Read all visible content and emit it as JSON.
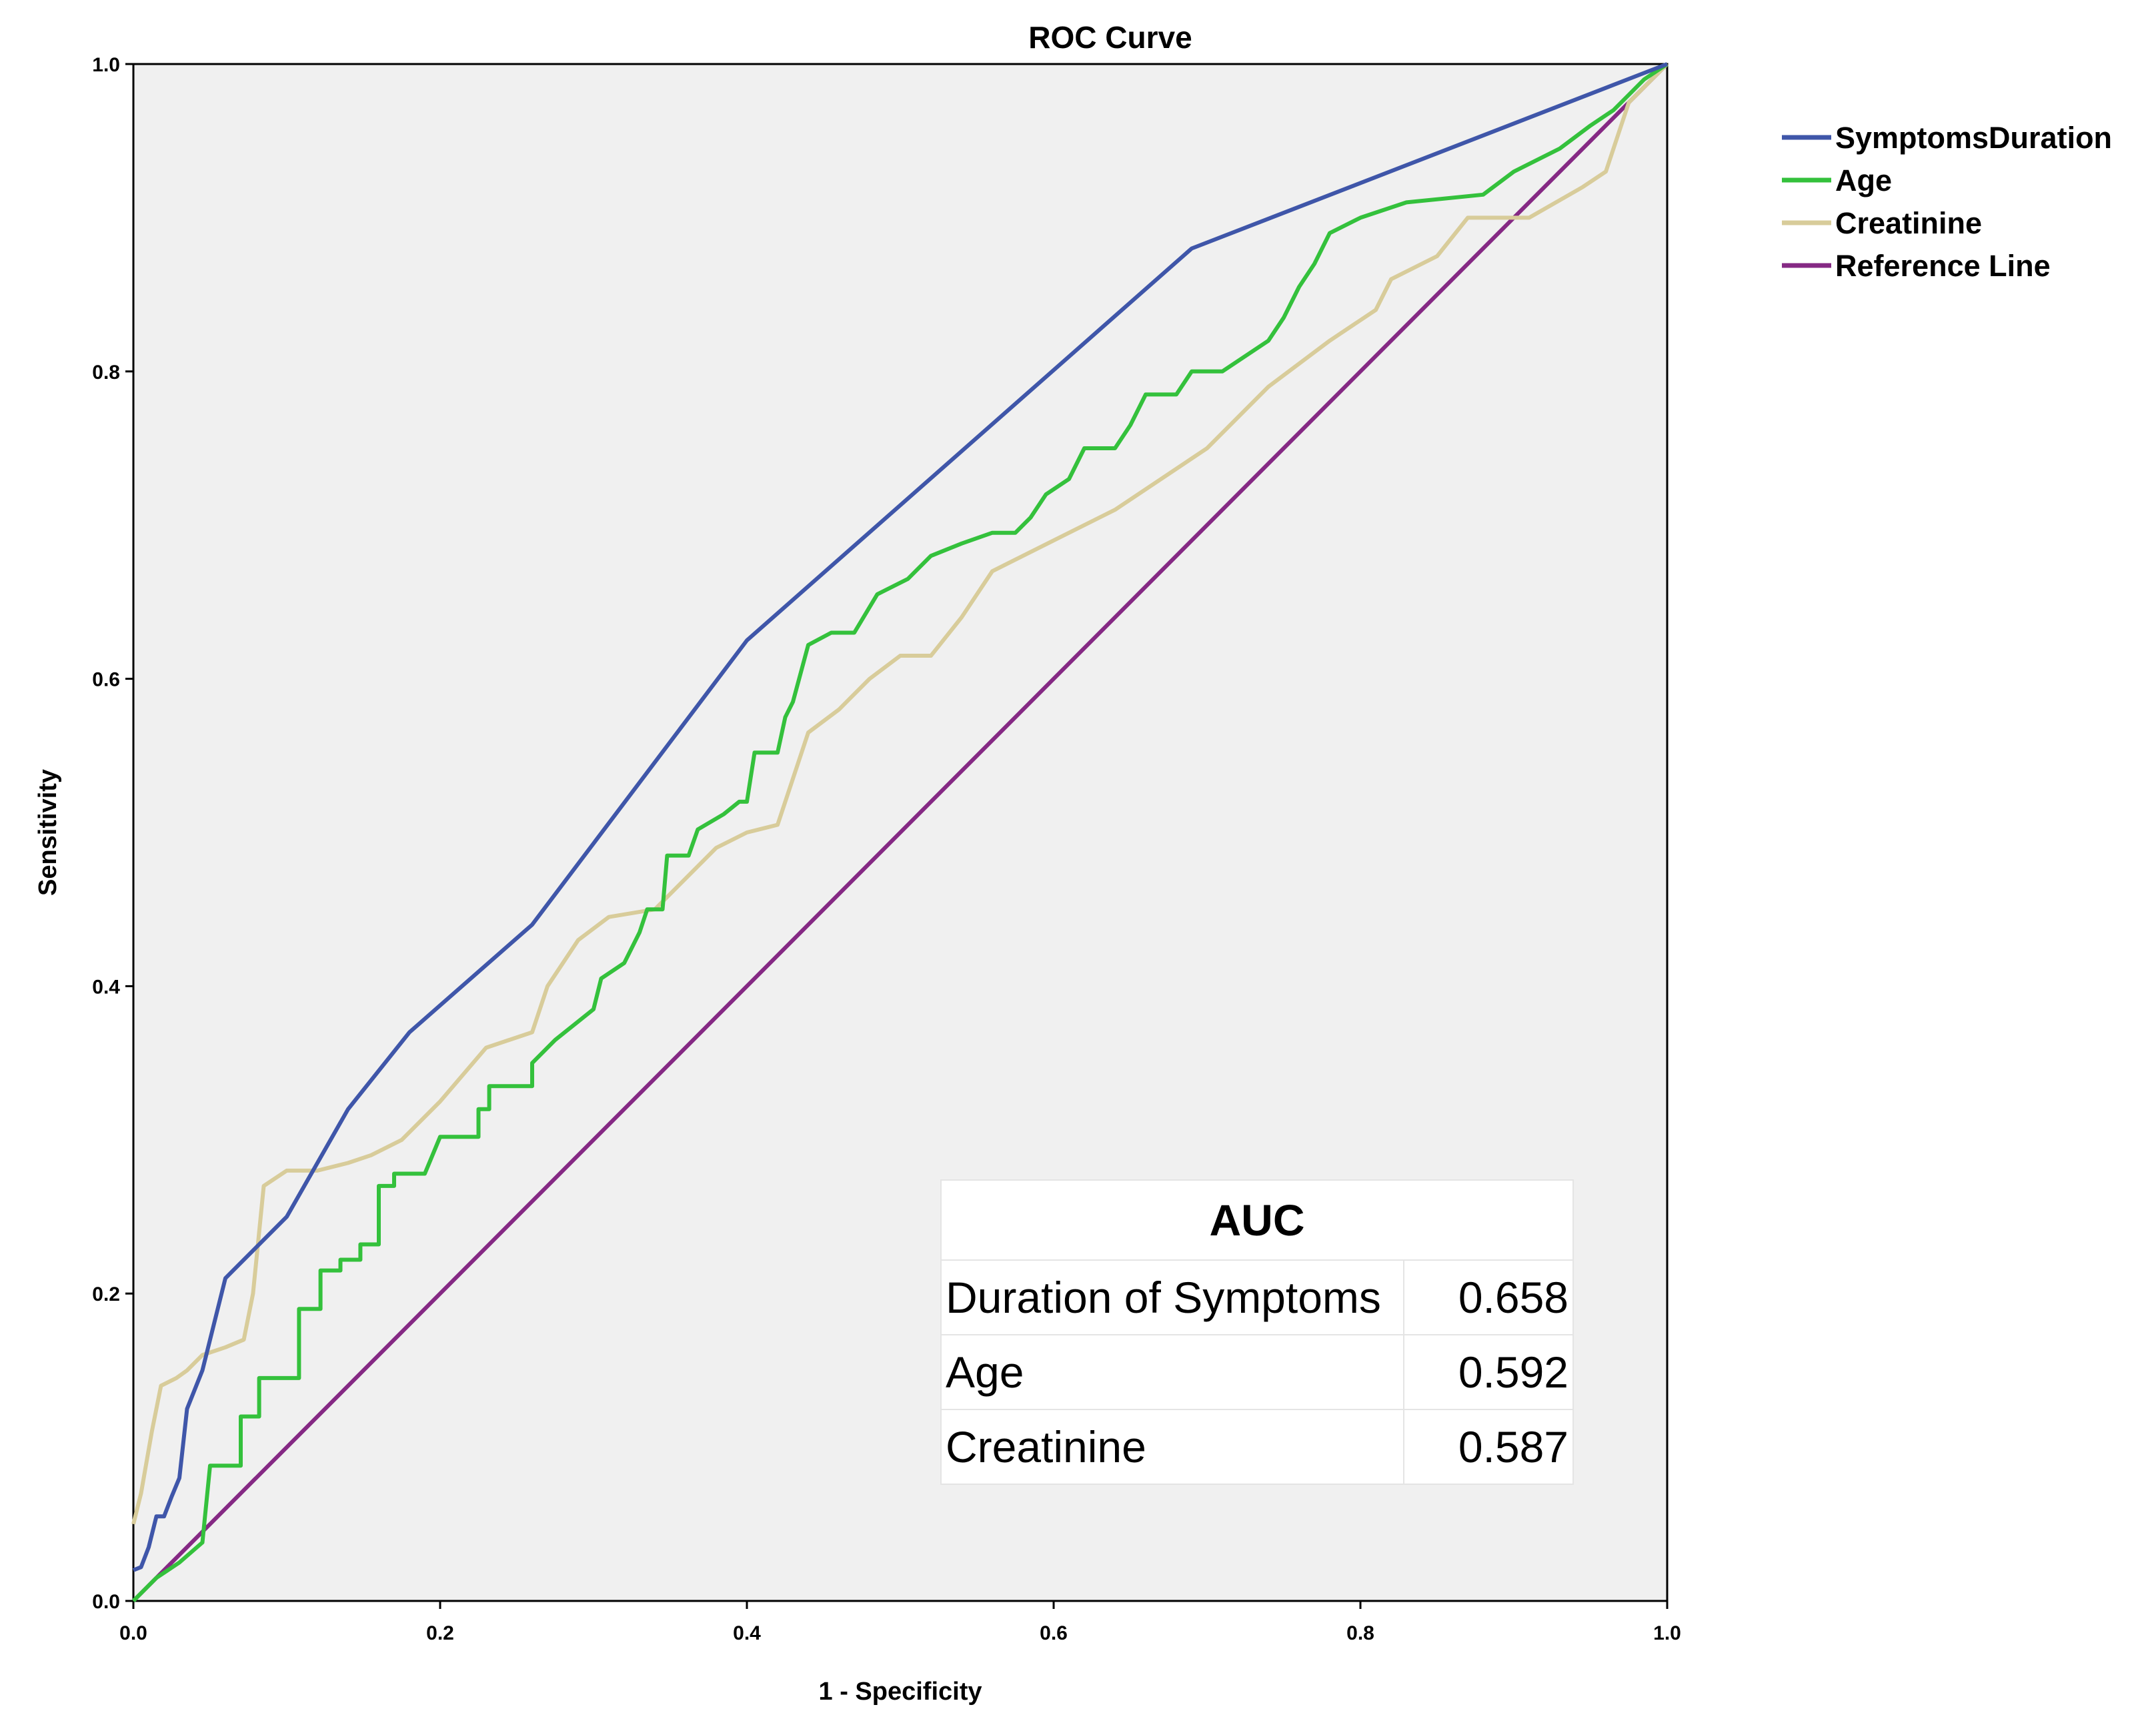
{
  "chart_data": {
    "type": "line",
    "title": "ROC Curve",
    "xlabel": "1 - Specificity",
    "ylabel": "Sensitivity",
    "xlim": [
      0,
      1
    ],
    "ylim": [
      0,
      1
    ],
    "x_ticks": [
      "0.0",
      "0.2",
      "0.4",
      "0.6",
      "0.8",
      "1.0"
    ],
    "y_ticks": [
      "0.0",
      "0.2",
      "0.4",
      "0.6",
      "0.8",
      "1.0"
    ],
    "legend_position": "right-top",
    "series": [
      {
        "name": "SymptomsDuration",
        "color": "#3f56a9",
        "points": [
          [
            0,
            0.02
          ],
          [
            0.005,
            0.022
          ],
          [
            0.01,
            0.035
          ],
          [
            0.015,
            0.055
          ],
          [
            0.02,
            0.055
          ],
          [
            0.025,
            0.068
          ],
          [
            0.03,
            0.08
          ],
          [
            0.035,
            0.125
          ],
          [
            0.045,
            0.15
          ],
          [
            0.055,
            0.19
          ],
          [
            0.06,
            0.21
          ],
          [
            0.1,
            0.25
          ],
          [
            0.14,
            0.32
          ],
          [
            0.18,
            0.37
          ],
          [
            0.26,
            0.44
          ],
          [
            0.4,
            0.625
          ],
          [
            0.69,
            0.88
          ],
          [
            1,
            1
          ]
        ]
      },
      {
        "name": "Age",
        "color": "#34c13c",
        "points": [
          [
            0,
            0
          ],
          [
            0.015,
            0.015
          ],
          [
            0.03,
            0.025
          ],
          [
            0.045,
            0.038
          ],
          [
            0.05,
            0.088
          ],
          [
            0.07,
            0.088
          ],
          [
            0.07,
            0.12
          ],
          [
            0.082,
            0.12
          ],
          [
            0.082,
            0.145
          ],
          [
            0.108,
            0.145
          ],
          [
            0.108,
            0.19
          ],
          [
            0.122,
            0.19
          ],
          [
            0.122,
            0.215
          ],
          [
            0.135,
            0.215
          ],
          [
            0.135,
            0.222
          ],
          [
            0.148,
            0.222
          ],
          [
            0.148,
            0.232
          ],
          [
            0.16,
            0.232
          ],
          [
            0.16,
            0.27
          ],
          [
            0.17,
            0.27
          ],
          [
            0.17,
            0.278
          ],
          [
            0.19,
            0.278
          ],
          [
            0.2,
            0.302
          ],
          [
            0.225,
            0.302
          ],
          [
            0.225,
            0.32
          ],
          [
            0.232,
            0.32
          ],
          [
            0.232,
            0.335
          ],
          [
            0.26,
            0.335
          ],
          [
            0.26,
            0.35
          ],
          [
            0.275,
            0.365
          ],
          [
            0.3,
            0.385
          ],
          [
            0.305,
            0.405
          ],
          [
            0.32,
            0.415
          ],
          [
            0.33,
            0.435
          ],
          [
            0.335,
            0.45
          ],
          [
            0.345,
            0.45
          ],
          [
            0.348,
            0.485
          ],
          [
            0.362,
            0.485
          ],
          [
            0.368,
            0.502
          ],
          [
            0.385,
            0.512
          ],
          [
            0.395,
            0.52
          ],
          [
            0.4,
            0.52
          ],
          [
            0.405,
            0.552
          ],
          [
            0.42,
            0.552
          ],
          [
            0.425,
            0.575
          ],
          [
            0.43,
            0.585
          ],
          [
            0.44,
            0.622
          ],
          [
            0.455,
            0.63
          ],
          [
            0.47,
            0.63
          ],
          [
            0.485,
            0.655
          ],
          [
            0.505,
            0.665
          ],
          [
            0.52,
            0.68
          ],
          [
            0.54,
            0.688
          ],
          [
            0.56,
            0.695
          ],
          [
            0.575,
            0.695
          ],
          [
            0.585,
            0.705
          ],
          [
            0.595,
            0.72
          ],
          [
            0.61,
            0.73
          ],
          [
            0.62,
            0.75
          ],
          [
            0.64,
            0.75
          ],
          [
            0.65,
            0.765
          ],
          [
            0.66,
            0.785
          ],
          [
            0.68,
            0.785
          ],
          [
            0.69,
            0.8
          ],
          [
            0.71,
            0.8
          ],
          [
            0.725,
            0.81
          ],
          [
            0.74,
            0.82
          ],
          [
            0.75,
            0.835
          ],
          [
            0.76,
            0.855
          ],
          [
            0.77,
            0.87
          ],
          [
            0.78,
            0.89
          ],
          [
            0.8,
            0.9
          ],
          [
            0.83,
            0.91
          ],
          [
            0.88,
            0.915
          ],
          [
            0.9,
            0.93
          ],
          [
            0.93,
            0.945
          ],
          [
            0.95,
            0.96
          ],
          [
            0.965,
            0.97
          ],
          [
            0.975,
            0.98
          ],
          [
            0.985,
            0.99
          ],
          [
            1,
            1
          ]
        ]
      },
      {
        "name": "Creatinine",
        "color": "#d8cc9a",
        "points": [
          [
            0,
            0.05
          ],
          [
            0.005,
            0.07
          ],
          [
            0.012,
            0.11
          ],
          [
            0.018,
            0.14
          ],
          [
            0.028,
            0.145
          ],
          [
            0.035,
            0.15
          ],
          [
            0.045,
            0.16
          ],
          [
            0.06,
            0.165
          ],
          [
            0.072,
            0.17
          ],
          [
            0.078,
            0.2
          ],
          [
            0.085,
            0.27
          ],
          [
            0.1,
            0.28
          ],
          [
            0.12,
            0.28
          ],
          [
            0.14,
            0.285
          ],
          [
            0.155,
            0.29
          ],
          [
            0.175,
            0.3
          ],
          [
            0.2,
            0.325
          ],
          [
            0.23,
            0.36
          ],
          [
            0.26,
            0.37
          ],
          [
            0.27,
            0.4
          ],
          [
            0.29,
            0.43
          ],
          [
            0.31,
            0.445
          ],
          [
            0.34,
            0.45
          ],
          [
            0.36,
            0.47
          ],
          [
            0.38,
            0.49
          ],
          [
            0.4,
            0.5
          ],
          [
            0.42,
            0.505
          ],
          [
            0.44,
            0.565
          ],
          [
            0.46,
            0.58
          ],
          [
            0.48,
            0.6
          ],
          [
            0.5,
            0.615
          ],
          [
            0.52,
            0.615
          ],
          [
            0.54,
            0.64
          ],
          [
            0.56,
            0.67
          ],
          [
            0.6,
            0.69
          ],
          [
            0.64,
            0.71
          ],
          [
            0.7,
            0.75
          ],
          [
            0.74,
            0.79
          ],
          [
            0.78,
            0.82
          ],
          [
            0.81,
            0.84
          ],
          [
            0.82,
            0.86
          ],
          [
            0.85,
            0.875
          ],
          [
            0.87,
            0.9
          ],
          [
            0.91,
            0.9
          ],
          [
            0.945,
            0.92
          ],
          [
            0.96,
            0.93
          ],
          [
            0.975,
            0.975
          ],
          [
            1,
            1
          ]
        ]
      },
      {
        "name": "Reference Line",
        "color": "#852984",
        "points": [
          [
            0,
            0
          ],
          [
            1,
            1
          ]
        ]
      }
    ],
    "auc_table": {
      "header": "AUC",
      "rows": [
        {
          "label": "Duration of Symptoms",
          "value": "0.658"
        },
        {
          "label": "Age",
          "value": "0.592"
        },
        {
          "label": "Creatinine",
          "value": "0.587"
        }
      ]
    }
  }
}
